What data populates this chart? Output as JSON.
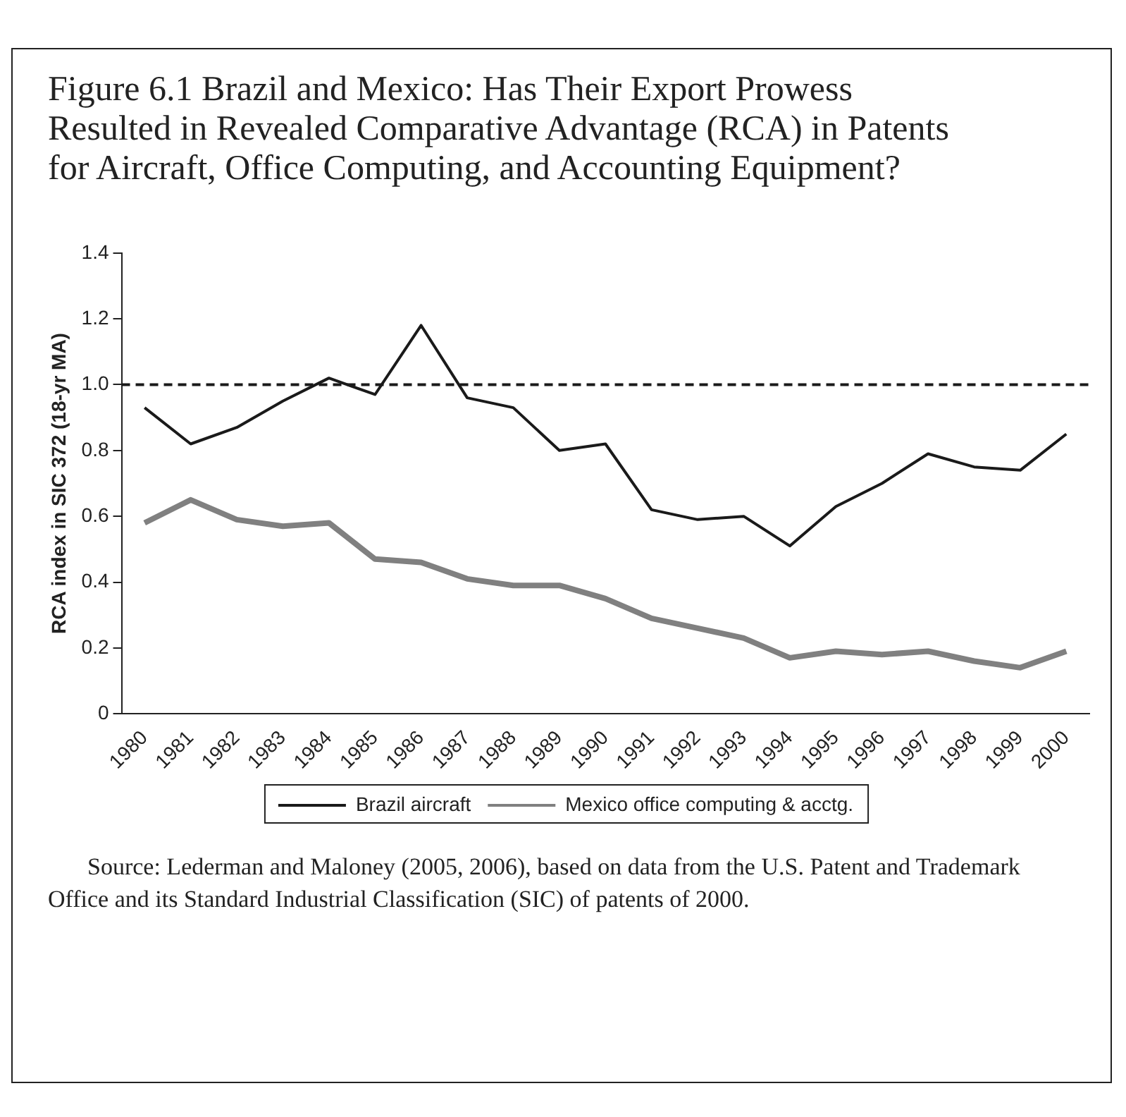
{
  "chart_data": {
    "type": "line",
    "title": "Figure 6.1 Brazil and Mexico: Has Their Export Prowess Resulted in Revealed Comparative Advantage (RCA) in Patents for Aircraft, Office Computing, and Accounting Equipment?",
    "ylabel": "RCA index in SIC 372 (18-yr MA)",
    "categories": [
      "1980",
      "1981",
      "1982",
      "1983",
      "1984",
      "1985",
      "1986",
      "1987",
      "1988",
      "1989",
      "1990",
      "1991",
      "1992",
      "1993",
      "1994",
      "1995",
      "1996",
      "1997",
      "1998",
      "1999",
      "2000"
    ],
    "series": [
      {
        "name": "Brazil aircraft",
        "color": "#1a1a1a",
        "values": [
          0.93,
          0.82,
          0.87,
          0.95,
          1.02,
          0.97,
          1.18,
          0.96,
          0.93,
          0.8,
          0.82,
          0.62,
          0.59,
          0.6,
          0.51,
          0.63,
          0.7,
          0.79,
          0.75,
          0.74,
          0.85
        ]
      },
      {
        "name": "Mexico office computing & acctg.",
        "color": "#808080",
        "values": [
          0.58,
          0.65,
          0.59,
          0.57,
          0.58,
          0.47,
          0.46,
          0.41,
          0.39,
          0.39,
          0.35,
          0.29,
          0.26,
          0.23,
          0.17,
          0.19,
          0.18,
          0.19,
          0.16,
          0.14,
          0.19
        ]
      }
    ],
    "ylim": [
      0,
      1.4
    ],
    "yticks": [
      0,
      0.2,
      0.4,
      0.6,
      0.8,
      {
        "value": 1,
        "label": "1.0"
      },
      1.2,
      1.4
    ],
    "ref_lines": [
      {
        "axis": "y",
        "value": 1,
        "color": "#1a1a1a",
        "line_style": "dashed"
      }
    ],
    "grid": false,
    "legend": "bottom",
    "marker": "none",
    "line_style": "solid",
    "annotations": [
      "Source: Lederman and Maloney (2005, 2006), based on data from the U.S. Patent and Trademark Office and its Standard Industrial Classification (SIC) of patents of 2000."
    ]
  }
}
